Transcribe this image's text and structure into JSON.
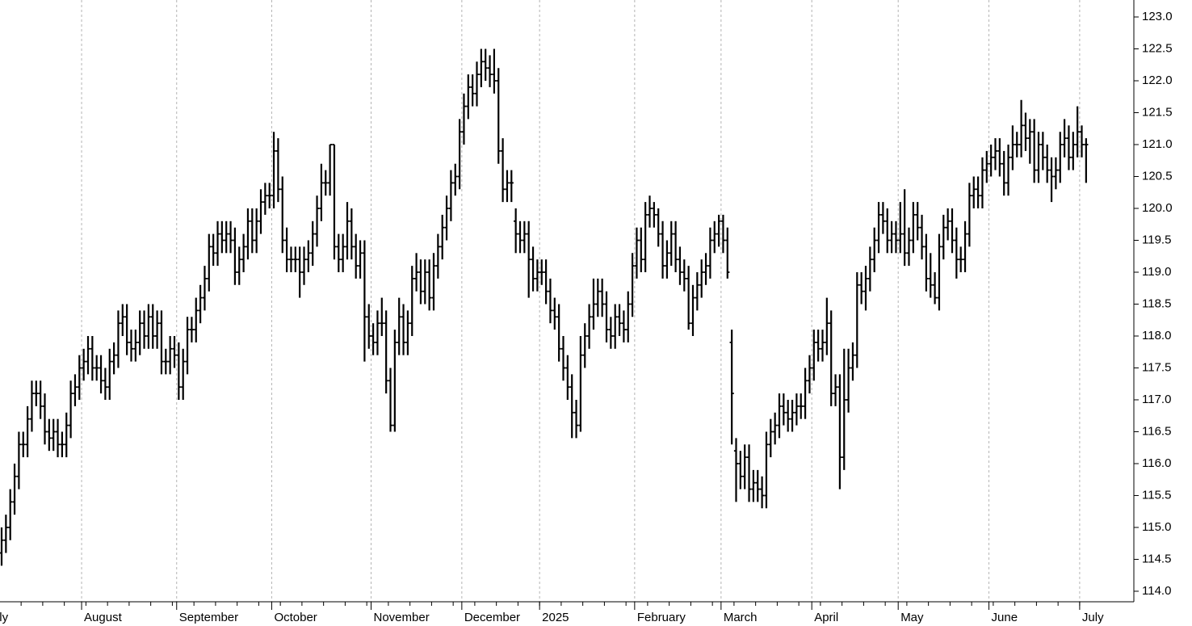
{
  "chart_data": {
    "type": "ohlc",
    "color": "#000000",
    "grid": true,
    "y_axis_side": "right",
    "ylim": [
      113.835,
      123.266
    ],
    "yticks": [
      {
        "value": 114,
        "label": "114.0"
      },
      {
        "value": 114.5,
        "label": "114.5"
      },
      {
        "value": 115,
        "label": "115.0"
      },
      {
        "value": 115.5,
        "label": "115.5"
      },
      {
        "value": 116,
        "label": "116.0"
      },
      {
        "value": 116.5,
        "label": "116.5"
      },
      {
        "value": 117,
        "label": "117.0"
      },
      {
        "value": 117.5,
        "label": "117.5"
      },
      {
        "value": 118,
        "label": "118.0"
      },
      {
        "value": 118.5,
        "label": "118.5"
      },
      {
        "value": 119,
        "label": "119.0"
      },
      {
        "value": 119.5,
        "label": "119.5"
      },
      {
        "value": 120,
        "label": "120.0"
      },
      {
        "value": 120.5,
        "label": "120.5"
      },
      {
        "value": 121,
        "label": "121.0"
      },
      {
        "value": 121.5,
        "label": "121.5"
      },
      {
        "value": 122,
        "label": "122.0"
      },
      {
        "value": 122.5,
        "label": "122.5"
      },
      {
        "value": 123,
        "label": "123.0"
      }
    ],
    "categories": [
      "July",
      null,
      null,
      null,
      null,
      null,
      null,
      null,
      null,
      null,
      null,
      null,
      null,
      null,
      null,
      null,
      null,
      null,
      null,
      "August",
      null,
      null,
      null,
      null,
      null,
      null,
      null,
      null,
      null,
      null,
      null,
      null,
      null,
      null,
      null,
      null,
      null,
      null,
      null,
      null,
      null,
      "September",
      null,
      null,
      null,
      null,
      null,
      null,
      null,
      null,
      null,
      null,
      null,
      null,
      null,
      null,
      null,
      null,
      null,
      null,
      null,
      null,
      null,
      "October",
      null,
      null,
      null,
      null,
      null,
      null,
      null,
      null,
      null,
      null,
      null,
      null,
      null,
      null,
      null,
      null,
      null,
      null,
      null,
      null,
      null,
      null,
      "November",
      null,
      null,
      null,
      null,
      null,
      null,
      null,
      null,
      null,
      null,
      null,
      null,
      null,
      null,
      null,
      null,
      null,
      null,
      null,
      null,
      "December",
      null,
      null,
      null,
      null,
      null,
      null,
      null,
      null,
      null,
      null,
      null,
      null,
      null,
      null,
      null,
      null,
      null,
      "2025",
      null,
      null,
      null,
      null,
      null,
      null,
      null,
      null,
      null,
      null,
      null,
      null,
      null,
      null,
      null,
      null,
      null,
      null,
      null,
      null,
      null,
      "February",
      null,
      null,
      null,
      null,
      null,
      null,
      null,
      null,
      null,
      null,
      null,
      null,
      null,
      null,
      null,
      null,
      null,
      null,
      null,
      "March",
      null,
      null,
      null,
      null,
      null,
      null,
      null,
      null,
      null,
      null,
      null,
      null,
      null,
      null,
      null,
      null,
      null,
      null,
      null,
      null,
      "April",
      null,
      null,
      null,
      null,
      null,
      null,
      null,
      null,
      null,
      null,
      null,
      null,
      null,
      null,
      null,
      null,
      null,
      null,
      null,
      "May",
      null,
      null,
      null,
      null,
      null,
      null,
      null,
      null,
      null,
      null,
      null,
      null,
      null,
      null,
      null,
      null,
      null,
      null,
      null,
      null,
      "June",
      null,
      null,
      null,
      null,
      null,
      null,
      null,
      null,
      null,
      null,
      null,
      null,
      null,
      null,
      null,
      null,
      null,
      null,
      null,
      null,
      "July",
      null
    ],
    "open": [
      114.6,
      114.8,
      115.0,
      115.4,
      115.8,
      116.3,
      116.3,
      116.7,
      117.1,
      117.1,
      116.9,
      116.5,
      116.4,
      116.5,
      116.3,
      116.3,
      116.6,
      117.1,
      117.2,
      117.5,
      117.6,
      117.8,
      117.5,
      117.5,
      117.3,
      117.2,
      117.6,
      117.7,
      118.2,
      118.3,
      117.9,
      117.8,
      117.9,
      118.2,
      118.0,
      118.3,
      118.0,
      118.2,
      117.6,
      117.6,
      117.8,
      117.7,
      117.2,
      117.6,
      118.1,
      118.1,
      118.4,
      118.6,
      118.9,
      119.4,
      119.3,
      119.6,
      119.5,
      119.6,
      119.5,
      119.0,
      119.2,
      119.4,
      119.8,
      119.5,
      119.8,
      120.1,
      120.2,
      120.2,
      120.9,
      120.3,
      119.5,
      119.2,
      119.2,
      119.2,
      119.0,
      119.2,
      119.3,
      119.6,
      120.0,
      120.4,
      120.4,
      121.0,
      119.4,
      119.2,
      119.4,
      119.8,
      119.4,
      119.1,
      119.3,
      118.3,
      118.0,
      117.9,
      118.2,
      118.2,
      117.3,
      116.6,
      117.9,
      118.3,
      117.9,
      118.2,
      118.9,
      119.0,
      118.7,
      119.0,
      118.6,
      119.1,
      119.4,
      119.7,
      120.0,
      120.4,
      120.5,
      121.2,
      121.6,
      121.9,
      121.8,
      122.1,
      122.3,
      122.2,
      122.1,
      122.0,
      120.9,
      120.3,
      120.4,
      119.8,
      119.6,
      119.5,
      119.6,
      119.2,
      118.9,
      119.0,
      119.0,
      118.7,
      118.4,
      118.3,
      117.8,
      117.5,
      117.2,
      116.8,
      116.6,
      117.7,
      118.0,
      118.3,
      118.5,
      118.7,
      118.5,
      118.1,
      118.0,
      118.3,
      118.2,
      118.1,
      118.5,
      119.1,
      119.5,
      119.2,
      119.9,
      120.0,
      119.9,
      119.6,
      119.1,
      119.3,
      119.6,
      119.2,
      119.0,
      118.9,
      118.2,
      118.6,
      118.8,
      119.0,
      119.1,
      119.5,
      119.6,
      119.8,
      119.5,
      117.9,
      116.2,
      116.0,
      115.8,
      116.1,
      115.6,
      115.7,
      115.6,
      115.5,
      116.3,
      116.5,
      116.6,
      116.9,
      116.8,
      116.7,
      116.8,
      116.9,
      116.9,
      117.3,
      117.5,
      117.9,
      117.8,
      117.9,
      118.2,
      117.1,
      117.2,
      116.1,
      117.0,
      117.5,
      117.7,
      118.8,
      118.7,
      118.9,
      119.2,
      119.5,
      119.9,
      119.8,
      119.5,
      119.6,
      119.5,
      119.6,
      119.3,
      119.5,
      119.9,
      119.7,
      119.4,
      118.9,
      118.8,
      118.6,
      119.4,
      119.7,
      119.8,
      119.5,
      119.2,
      119.2,
      119.6,
      120.2,
      120.3,
      120.2,
      120.6,
      120.7,
      120.8,
      120.9,
      120.7,
      120.4,
      120.8,
      121.0,
      121.0,
      121.3,
      121.1,
      121.2,
      120.6,
      121.0,
      120.8,
      120.6,
      120.5,
      120.6,
      121.0,
      121.1,
      120.8,
      121.0,
      121.2,
      121.0
    ],
    "high": [
      115.0,
      115.2,
      115.6,
      116.0,
      116.5,
      116.5,
      116.9,
      117.3,
      117.3,
      117.3,
      117.1,
      116.7,
      116.7,
      116.7,
      116.5,
      116.8,
      117.3,
      117.4,
      117.7,
      117.8,
      118.0,
      118.0,
      117.7,
      117.7,
      117.5,
      117.8,
      117.9,
      118.4,
      118.5,
      118.5,
      118.1,
      118.1,
      118.4,
      118.4,
      118.5,
      118.5,
      118.4,
      118.4,
      117.8,
      118.0,
      118.0,
      117.9,
      117.8,
      118.3,
      118.3,
      118.6,
      118.8,
      119.1,
      119.6,
      119.6,
      119.8,
      119.8,
      119.8,
      119.8,
      119.7,
      119.4,
      119.6,
      120.0,
      120.0,
      120.0,
      120.3,
      120.4,
      120.4,
      121.2,
      121.1,
      120.5,
      119.7,
      119.4,
      119.4,
      119.4,
      119.4,
      119.5,
      119.8,
      120.2,
      120.7,
      120.6,
      121.0,
      121.0,
      119.6,
      119.6,
      120.1,
      120.0,
      119.6,
      119.5,
      119.5,
      118.5,
      118.2,
      118.4,
      118.6,
      118.4,
      117.5,
      118.1,
      118.6,
      118.5,
      118.4,
      119.1,
      119.3,
      119.2,
      119.2,
      119.2,
      119.3,
      119.6,
      119.9,
      120.2,
      120.6,
      120.7,
      121.4,
      121.8,
      122.1,
      122.1,
      122.3,
      122.5,
      122.5,
      122.4,
      122.5,
      122.2,
      121.1,
      120.6,
      120.6,
      120.0,
      119.8,
      119.8,
      119.8,
      119.4,
      119.2,
      119.2,
      119.2,
      118.9,
      118.6,
      118.5,
      118.0,
      117.7,
      117.4,
      117.0,
      118.0,
      118.2,
      118.5,
      118.9,
      118.9,
      118.9,
      118.7,
      118.3,
      118.5,
      118.5,
      118.4,
      118.7,
      119.3,
      119.7,
      119.7,
      120.1,
      120.2,
      120.1,
      120.0,
      119.8,
      119.5,
      119.8,
      119.8,
      119.4,
      119.2,
      119.1,
      118.8,
      119.0,
      119.2,
      119.3,
      119.7,
      119.8,
      119.9,
      119.9,
      119.7,
      118.1,
      116.4,
      116.2,
      116.3,
      116.3,
      115.9,
      115.9,
      115.8,
      116.5,
      116.7,
      116.8,
      117.1,
      117.1,
      117.0,
      117.0,
      117.1,
      117.1,
      117.5,
      117.7,
      118.1,
      118.1,
      118.1,
      118.6,
      118.4,
      117.4,
      117.4,
      117.8,
      117.8,
      117.9,
      119.0,
      119.0,
      119.1,
      119.4,
      119.7,
      120.1,
      120.1,
      120.0,
      119.8,
      119.8,
      120.1,
      120.3,
      119.7,
      120.1,
      120.1,
      119.9,
      119.6,
      119.3,
      119.0,
      119.6,
      119.9,
      120.0,
      120.0,
      119.7,
      119.4,
      119.8,
      120.4,
      120.5,
      120.5,
      120.8,
      120.9,
      121.0,
      121.1,
      121.1,
      120.9,
      121.0,
      121.3,
      121.2,
      121.7,
      121.5,
      121.4,
      121.4,
      121.2,
      121.2,
      121.0,
      120.8,
      120.8,
      121.2,
      121.4,
      121.3,
      121.2,
      121.6,
      121.3,
      121.1
    ],
    "low": [
      114.4,
      114.6,
      114.8,
      115.2,
      115.6,
      116.1,
      116.1,
      116.5,
      116.9,
      116.7,
      116.3,
      116.2,
      116.2,
      116.1,
      116.1,
      116.1,
      116.4,
      116.9,
      117.0,
      117.3,
      117.4,
      117.3,
      117.3,
      117.1,
      117.0,
      117.0,
      117.4,
      117.5,
      118.0,
      117.7,
      117.6,
      117.6,
      117.7,
      117.8,
      117.8,
      117.8,
      117.8,
      117.4,
      117.4,
      117.4,
      117.5,
      117.0,
      117.0,
      117.4,
      117.9,
      117.9,
      118.2,
      118.4,
      118.7,
      119.1,
      119.1,
      119.3,
      119.3,
      119.3,
      118.8,
      118.8,
      119.0,
      119.2,
      119.3,
      119.3,
      119.6,
      119.9,
      120.0,
      120.0,
      120.1,
      119.3,
      119.0,
      119.0,
      119.0,
      118.6,
      118.8,
      119.0,
      119.1,
      119.4,
      119.8,
      120.2,
      120.2,
      119.2,
      119.0,
      119.0,
      119.2,
      119.2,
      118.9,
      118.9,
      117.6,
      117.8,
      117.7,
      117.7,
      118.0,
      117.1,
      116.5,
      116.5,
      117.7,
      117.7,
      117.7,
      118.0,
      118.7,
      118.5,
      118.5,
      118.4,
      118.4,
      118.9,
      119.2,
      119.5,
      119.8,
      120.2,
      120.3,
      121.0,
      121.4,
      121.6,
      121.6,
      121.9,
      122.0,
      121.9,
      121.8,
      120.7,
      120.1,
      120.1,
      120.1,
      119.3,
      119.3,
      119.3,
      118.6,
      118.7,
      118.7,
      118.8,
      118.5,
      118.2,
      118.1,
      117.6,
      117.3,
      117.0,
      116.4,
      116.4,
      116.5,
      117.5,
      117.8,
      118.1,
      118.3,
      118.3,
      117.9,
      117.8,
      117.8,
      118.0,
      117.9,
      117.9,
      118.3,
      118.9,
      119.0,
      119.0,
      119.7,
      119.7,
      119.4,
      118.9,
      118.9,
      119.1,
      119.0,
      118.8,
      118.7,
      118.1,
      118.0,
      118.4,
      118.6,
      118.8,
      118.9,
      119.3,
      119.4,
      119.3,
      118.9,
      116.3,
      115.4,
      115.6,
      115.6,
      115.4,
      115.4,
      115.4,
      115.3,
      115.3,
      116.1,
      116.3,
      116.4,
      116.6,
      116.5,
      116.5,
      116.6,
      116.7,
      116.7,
      117.1,
      117.3,
      117.6,
      117.6,
      117.7,
      116.9,
      116.9,
      115.6,
      115.9,
      116.8,
      117.3,
      117.5,
      118.5,
      118.4,
      118.7,
      119.0,
      119.3,
      119.6,
      119.3,
      119.3,
      119.3,
      119.3,
      119.1,
      119.1,
      119.3,
      119.5,
      119.2,
      118.7,
      118.6,
      118.5,
      118.4,
      119.2,
      119.5,
      119.3,
      118.9,
      119.0,
      119.0,
      119.4,
      120.0,
      120.0,
      120.0,
      120.4,
      120.5,
      120.6,
      120.5,
      120.2,
      120.2,
      120.6,
      120.8,
      120.8,
      120.9,
      120.7,
      120.4,
      120.4,
      120.6,
      120.4,
      120.1,
      120.3,
      120.4,
      120.8,
      120.6,
      120.6,
      120.8,
      120.8,
      120.4
    ],
    "close": [
      114.8,
      115.0,
      115.4,
      115.8,
      116.3,
      116.3,
      116.7,
      117.1,
      117.1,
      116.9,
      116.5,
      116.4,
      116.5,
      116.3,
      116.3,
      116.6,
      117.1,
      117.2,
      117.5,
      117.6,
      117.8,
      117.5,
      117.5,
      117.3,
      117.2,
      117.6,
      117.7,
      118.2,
      118.3,
      117.9,
      117.8,
      117.9,
      118.2,
      118.0,
      118.3,
      118.0,
      118.2,
      117.6,
      117.6,
      117.8,
      117.7,
      117.2,
      117.6,
      118.1,
      118.1,
      118.4,
      118.6,
      118.9,
      119.4,
      119.3,
      119.6,
      119.5,
      119.6,
      119.5,
      119.0,
      119.2,
      119.4,
      119.8,
      119.5,
      119.8,
      120.1,
      120.2,
      120.2,
      120.9,
      120.3,
      119.5,
      119.2,
      119.2,
      119.2,
      119.0,
      119.2,
      119.3,
      119.6,
      120.0,
      120.4,
      120.4,
      121.0,
      119.4,
      119.2,
      119.4,
      119.8,
      119.4,
      119.1,
      119.3,
      118.3,
      118.0,
      117.9,
      118.2,
      118.2,
      117.3,
      116.6,
      117.9,
      118.3,
      117.9,
      118.2,
      118.9,
      119.0,
      118.7,
      119.0,
      118.6,
      119.1,
      119.4,
      119.7,
      120.0,
      120.4,
      120.5,
      121.2,
      121.6,
      121.9,
      121.8,
      122.1,
      122.3,
      122.2,
      122.1,
      122.0,
      120.9,
      120.3,
      120.4,
      120.4,
      119.6,
      119.5,
      119.6,
      119.2,
      118.9,
      119.0,
      119.0,
      118.7,
      118.4,
      118.3,
      117.8,
      117.5,
      117.2,
      116.8,
      116.6,
      117.7,
      118.0,
      118.3,
      118.5,
      118.7,
      118.5,
      118.1,
      118.0,
      118.3,
      118.2,
      118.1,
      118.5,
      119.1,
      119.5,
      119.2,
      119.9,
      120.0,
      119.9,
      119.6,
      119.1,
      119.3,
      119.6,
      119.2,
      119.0,
      118.9,
      118.2,
      118.6,
      118.8,
      119.0,
      119.1,
      119.5,
      119.6,
      119.8,
      119.5,
      119.0,
      117.1,
      116.0,
      115.8,
      116.1,
      115.6,
      115.7,
      115.6,
      115.5,
      116.3,
      116.5,
      116.6,
      116.9,
      116.8,
      116.7,
      116.8,
      116.9,
      116.9,
      117.3,
      117.5,
      117.9,
      117.8,
      117.9,
      118.2,
      117.1,
      117.2,
      116.1,
      117.0,
      117.5,
      117.7,
      118.8,
      118.7,
      118.9,
      119.2,
      119.5,
      119.9,
      119.8,
      119.5,
      119.6,
      119.5,
      119.6,
      119.3,
      119.5,
      119.9,
      119.7,
      119.4,
      118.9,
      118.8,
      118.6,
      119.4,
      119.7,
      119.8,
      119.5,
      119.2,
      119.2,
      119.6,
      120.2,
      120.3,
      120.2,
      120.6,
      120.7,
      120.8,
      120.9,
      120.7,
      120.4,
      120.8,
      121.0,
      121.0,
      121.3,
      121.1,
      121.2,
      120.6,
      121.0,
      120.8,
      120.6,
      120.5,
      120.6,
      121.0,
      121.1,
      120.8,
      121.0,
      121.2,
      121.0,
      121.0
    ]
  }
}
